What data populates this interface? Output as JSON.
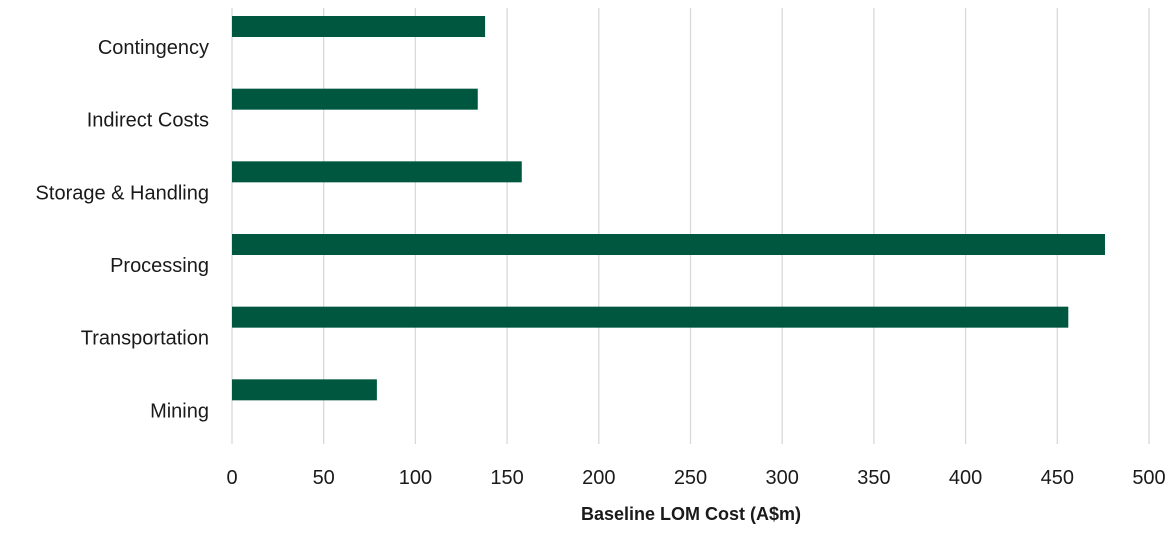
{
  "chart_data": {
    "type": "bar",
    "orientation": "horizontal",
    "categories": [
      "Mining",
      "Transportation",
      "Processing",
      "Storage & Handling",
      "Indirect Costs",
      "Contingency"
    ],
    "values": [
      79,
      456,
      476,
      158,
      134,
      138
    ],
    "title": "",
    "xlabel": "Baseline LOM Cost (A$m)",
    "ylabel": "",
    "xlim": [
      0,
      500
    ],
    "xticks": [
      "0",
      "50",
      "100",
      "150",
      "200",
      "250",
      "300",
      "350",
      "400",
      "450",
      "500"
    ],
    "grid": "vertical",
    "bar_color": "#00573f",
    "grid_color": "#d9d9d9"
  }
}
